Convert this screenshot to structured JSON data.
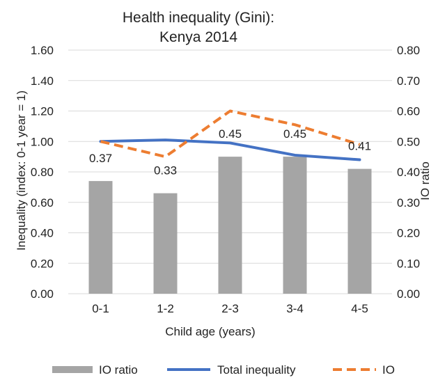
{
  "chart_data": {
    "type": "bar",
    "title": [
      "Health inequality (Gini):",
      "Kenya 2014"
    ],
    "xlabel": "Child age (years)",
    "ylabel_left": "Inequality  (index: 0-1 year = 1)",
    "ylabel_right": "IO ratio",
    "categories": [
      "0-1",
      "1-2",
      "2-3",
      "3-4",
      "4-5"
    ],
    "ylim_left": [
      0,
      1.6
    ],
    "ylim_right": [
      0,
      0.8
    ],
    "yticks_left": [
      "0.00",
      "0.20",
      "0.40",
      "0.60",
      "0.80",
      "1.00",
      "1.20",
      "1.40",
      "1.60"
    ],
    "yticks_right": [
      "0.00",
      "0.10",
      "0.20",
      "0.30",
      "0.40",
      "0.50",
      "0.60",
      "0.70",
      "0.80"
    ],
    "grid": true,
    "legend_position": "bottom",
    "series": [
      {
        "name": "IO ratio",
        "type": "bar",
        "axis": "right",
        "color": "#a5a5a5",
        "values": [
          0.37,
          0.33,
          0.45,
          0.45,
          0.41
        ],
        "labels": [
          "0.37",
          "0.33",
          "0.45",
          "0.45",
          "0.41"
        ]
      },
      {
        "name": "Total inequality",
        "type": "line",
        "axis": "left",
        "color": "#4472c4",
        "style": "solid",
        "values": [
          1.0,
          1.01,
          0.99,
          0.91,
          0.88
        ]
      },
      {
        "name": "IO",
        "type": "line",
        "axis": "left",
        "color": "#ed7d31",
        "style": "dashed",
        "values": [
          1.0,
          0.9,
          1.2,
          1.11,
          0.98
        ]
      }
    ]
  }
}
